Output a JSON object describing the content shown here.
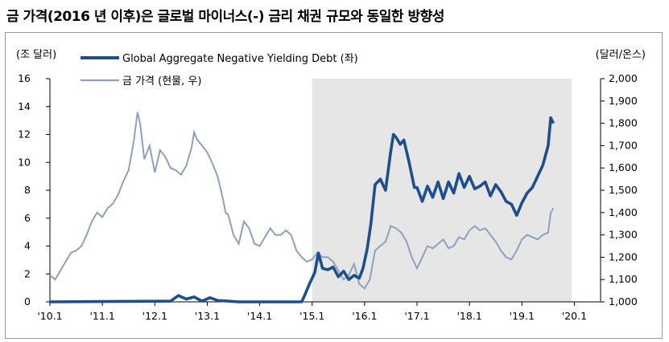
{
  "title": "금 가격(2016 년 이후)은 글로벌 마이너스(-) 금리 채권 규모와 동일한 방향성",
  "chart_data": {
    "type": "line",
    "title": "금 가격(2016 년 이후)은 글로벌 마이너스(-) 금리 채권 규모와 동일한 방향성",
    "ylabel_left": "(조 달러)",
    "ylabel_right": "(달러/온스)",
    "ylim_left": [
      0,
      16
    ],
    "yticks_left": [
      "16",
      "14",
      "12",
      "10",
      "8",
      "6",
      "4",
      "2",
      "0"
    ],
    "ylim_right": [
      1000,
      2000
    ],
    "yticks_right": [
      "2,000",
      "1,900",
      "1,800",
      "1,700",
      "1,600",
      "1,500",
      "1,400",
      "1,300",
      "1,200",
      "1,100",
      "1,000"
    ],
    "xlim": [
      2010.0,
      2020.5
    ],
    "xticks": [
      "'10.1",
      "'11.1",
      "'12.1",
      "'13.1",
      "'14.1",
      "'15.1",
      "'16.1",
      "'17.1",
      "'18.1",
      "'19.1",
      "'20.1"
    ],
    "shaded_region": [
      2015.0,
      2019.95
    ],
    "series": [
      {
        "name": "Global Aggregate Negative Yielding Debt (좌)",
        "axis": "left",
        "color": "#1f4e8c",
        "x": [
          2010.0,
          2012.3,
          2012.45,
          2012.6,
          2012.75,
          2012.9,
          2013.05,
          2013.2,
          2013.4,
          2013.6,
          2014.0,
          2014.5,
          2014.8,
          2014.85,
          2014.95,
          2015.05,
          2015.12,
          2015.2,
          2015.3,
          2015.4,
          2015.5,
          2015.6,
          2015.7,
          2015.8,
          2015.9,
          2015.97,
          2016.05,
          2016.12,
          2016.2,
          2016.3,
          2016.4,
          2016.5,
          2016.55,
          2016.6,
          2016.68,
          2016.75,
          2016.85,
          2016.95,
          2017.0,
          2017.1,
          2017.2,
          2017.3,
          2017.4,
          2017.5,
          2017.6,
          2017.7,
          2017.8,
          2017.9,
          2018.0,
          2018.1,
          2018.2,
          2018.3,
          2018.4,
          2018.5,
          2018.6,
          2018.7,
          2018.8,
          2018.9,
          2019.0,
          2019.1,
          2019.2,
          2019.3,
          2019.4,
          2019.5,
          2019.55,
          2019.6
        ],
        "values": [
          0,
          0.05,
          0.45,
          0.2,
          0.35,
          0.05,
          0.3,
          0.1,
          0.05,
          0,
          0,
          0,
          0,
          0.4,
          1.3,
          2.1,
          3.5,
          2.4,
          2.3,
          2.5,
          1.8,
          2.2,
          1.6,
          1.9,
          1.7,
          2.4,
          3.8,
          5.6,
          8.4,
          8.8,
          8.0,
          10.8,
          12.0,
          11.8,
          11.3,
          11.6,
          10.0,
          8.2,
          8.2,
          7.2,
          8.3,
          7.5,
          8.6,
          7.4,
          8.6,
          7.8,
          9.2,
          8.2,
          9.0,
          8.1,
          8.3,
          8.6,
          7.6,
          8.4,
          7.9,
          7.2,
          7.0,
          6.2,
          7.1,
          7.8,
          8.2,
          9.0,
          9.8,
          11.2,
          13.2,
          12.8
        ]
      },
      {
        "name": "금 가격 (현물, 우)",
        "axis": "right",
        "color": "#8ea0c2",
        "x": [
          2010.0,
          2010.1,
          2010.2,
          2010.3,
          2010.4,
          2010.5,
          2010.6,
          2010.7,
          2010.8,
          2010.9,
          2011.0,
          2011.1,
          2011.2,
          2011.3,
          2011.4,
          2011.5,
          2011.6,
          2011.67,
          2011.72,
          2011.8,
          2011.9,
          2012.0,
          2012.1,
          2012.2,
          2012.3,
          2012.4,
          2012.5,
          2012.6,
          2012.7,
          2012.75,
          2012.8,
          2012.9,
          2013.0,
          2013.1,
          2013.2,
          2013.3,
          2013.35,
          2013.4,
          2013.5,
          2013.6,
          2013.7,
          2013.8,
          2013.9,
          2014.0,
          2014.1,
          2014.2,
          2014.3,
          2014.4,
          2014.5,
          2014.6,
          2014.7,
          2014.8,
          2014.9,
          2015.0,
          2015.1,
          2015.2,
          2015.3,
          2015.4,
          2015.5,
          2015.6,
          2015.7,
          2015.8,
          2015.9,
          2016.0,
          2016.1,
          2016.2,
          2016.3,
          2016.4,
          2016.5,
          2016.6,
          2016.7,
          2016.8,
          2016.9,
          2017.0,
          2017.1,
          2017.2,
          2017.3,
          2017.4,
          2017.5,
          2017.6,
          2017.7,
          2017.8,
          2017.9,
          2018.0,
          2018.1,
          2018.2,
          2018.3,
          2018.4,
          2018.5,
          2018.6,
          2018.7,
          2018.8,
          2018.9,
          2019.0,
          2019.1,
          2019.2,
          2019.3,
          2019.4,
          2019.5,
          2019.55,
          2019.6
        ],
        "values": [
          1120,
          1100,
          1140,
          1180,
          1220,
          1230,
          1250,
          1300,
          1360,
          1400,
          1380,
          1420,
          1440,
          1480,
          1540,
          1590,
          1720,
          1850,
          1800,
          1640,
          1700,
          1580,
          1680,
          1650,
          1600,
          1590,
          1570,
          1610,
          1690,
          1760,
          1730,
          1700,
          1670,
          1620,
          1560,
          1460,
          1400,
          1390,
          1300,
          1260,
          1360,
          1330,
          1260,
          1250,
          1290,
          1330,
          1300,
          1300,
          1320,
          1300,
          1230,
          1200,
          1180,
          1190,
          1220,
          1200,
          1200,
          1180,
          1140,
          1100,
          1120,
          1170,
          1080,
          1060,
          1100,
          1230,
          1250,
          1270,
          1340,
          1330,
          1310,
          1270,
          1200,
          1150,
          1200,
          1250,
          1240,
          1260,
          1280,
          1240,
          1250,
          1290,
          1280,
          1320,
          1340,
          1320,
          1330,
          1300,
          1270,
          1230,
          1200,
          1190,
          1230,
          1280,
          1300,
          1290,
          1280,
          1300,
          1310,
          1400,
          1420
        ]
      }
    ]
  }
}
